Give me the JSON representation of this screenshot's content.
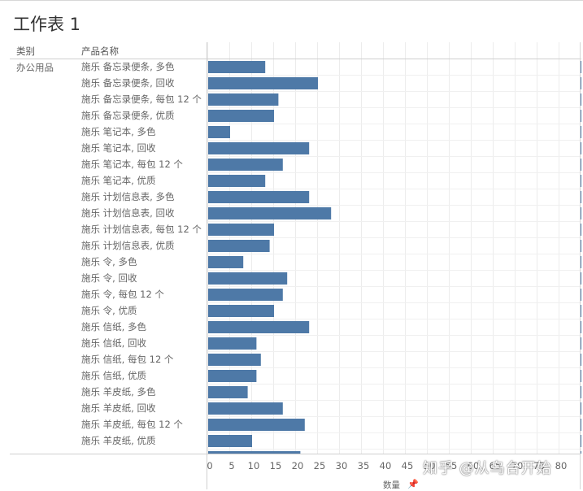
{
  "sheet": {
    "title": "工作表 1"
  },
  "headers": {
    "category": "类别",
    "product": "产品名称"
  },
  "category_label": "办公用品",
  "watermark": "知乎 @从乌台开始",
  "colors": {
    "bar": "#4e79a7",
    "grid": "#ececec",
    "axis": "#cfcfcf"
  },
  "chart_data": {
    "type": "bar",
    "orientation": "horizontal",
    "xlabel": "数量",
    "xlim": [
      0,
      85
    ],
    "xticks": [
      0,
      5,
      10,
      15,
      20,
      25,
      30,
      35,
      40,
      45,
      50,
      55,
      60,
      65,
      70,
      75,
      80
    ],
    "grid": true,
    "category": "办公用品",
    "categories": [
      "施乐 备忘录便条, 多色",
      "施乐 备忘录便条, 回收",
      "施乐 备忘录便条, 每包 12 个",
      "施乐 备忘录便条, 优质",
      "施乐 笔记本, 多色",
      "施乐 笔记本, 回收",
      "施乐 笔记本, 每包 12 个",
      "施乐 笔记本, 优质",
      "施乐 计划信息表, 多色",
      "施乐 计划信息表, 回收",
      "施乐 计划信息表, 每包 12 个",
      "施乐 计划信息表, 优质",
      "施乐 令, 多色",
      "施乐 令, 回收",
      "施乐 令, 每包 12 个",
      "施乐 令, 优质",
      "施乐 信纸, 多色",
      "施乐 信纸, 回收",
      "施乐 信纸, 每包 12 个",
      "施乐 信纸, 优质",
      "施乐 羊皮纸, 多色",
      "施乐 羊皮纸, 回收",
      "施乐 羊皮纸, 每包 12 个",
      "施乐 羊皮纸, 优质",
      ""
    ],
    "values": [
      13,
      25,
      16,
      15,
      5,
      23,
      17,
      13,
      23,
      28,
      15,
      14,
      8,
      18,
      17,
      15,
      23,
      11,
      12,
      11,
      9,
      17,
      22,
      10,
      21
    ]
  }
}
